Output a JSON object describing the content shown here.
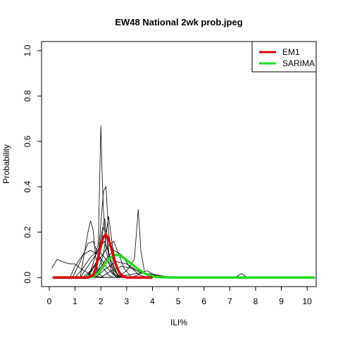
{
  "chart_data": {
    "type": "line",
    "title": "EW48 National 2wk prob.jpeg",
    "xlabel": "ILI%",
    "ylabel": "Probability",
    "xlim": [
      -0.3,
      10.35
    ],
    "ylim": [
      -0.04,
      1.04
    ],
    "x_ticks": [
      0,
      1,
      2,
      3,
      4,
      5,
      6,
      7,
      8,
      9,
      10
    ],
    "y_ticks": [
      0.0,
      0.2,
      0.4,
      0.6,
      0.8,
      1.0
    ],
    "x_tick_labels": [
      "0",
      "1",
      "2",
      "3",
      "4",
      "5",
      "6",
      "7",
      "8",
      "9",
      "10"
    ],
    "y_tick_labels": [
      "0.0",
      "0.2",
      "0.4",
      "0.6",
      "0.8",
      "1.0"
    ],
    "grid": false,
    "legend_position": "top-right",
    "legend": [
      {
        "name": "EM1",
        "color": "#dd0000"
      },
      {
        "name": "SARIMA",
        "color": "#22dd22"
      }
    ],
    "background_series": [
      {
        "color": "#000000",
        "points": [
          [
            0.1,
            0.04
          ],
          [
            0.3,
            0.08
          ],
          [
            0.5,
            0.07
          ],
          [
            0.8,
            0.06
          ],
          [
            1.0,
            0.06
          ],
          [
            1.2,
            0.04
          ],
          [
            1.5,
            0.02
          ],
          [
            1.8,
            0.005
          ],
          [
            2.2,
            0.0
          ],
          [
            10.3,
            0.0
          ]
        ]
      },
      {
        "color": "#000000",
        "points": [
          [
            0.1,
            0.0
          ],
          [
            1.2,
            0.0
          ],
          [
            1.5,
            0.2
          ],
          [
            1.6,
            0.25
          ],
          [
            1.7,
            0.21
          ],
          [
            1.8,
            0.09
          ],
          [
            1.9,
            0.02
          ],
          [
            2.1,
            0.0
          ],
          [
            10.3,
            0.0
          ]
        ]
      },
      {
        "color": "#000000",
        "points": [
          [
            0.1,
            0.0
          ],
          [
            1.5,
            0.0
          ],
          [
            1.7,
            0.06
          ],
          [
            1.9,
            0.15
          ],
          [
            2.0,
            0.67
          ],
          [
            2.05,
            0.45
          ],
          [
            2.1,
            0.3
          ],
          [
            2.2,
            0.12
          ],
          [
            2.4,
            0.03
          ],
          [
            2.6,
            0.0
          ],
          [
            10.3,
            0.0
          ]
        ]
      },
      {
        "color": "#000000",
        "points": [
          [
            0.1,
            0.0
          ],
          [
            1.7,
            0.0
          ],
          [
            1.9,
            0.1
          ],
          [
            2.1,
            0.38
          ],
          [
            2.2,
            0.4
          ],
          [
            2.3,
            0.2
          ],
          [
            2.5,
            0.05
          ],
          [
            2.7,
            0.0
          ],
          [
            10.3,
            0.0
          ]
        ]
      },
      {
        "color": "#000000",
        "points": [
          [
            0.1,
            0.0
          ],
          [
            1.8,
            0.0
          ],
          [
            2.0,
            0.18
          ],
          [
            2.15,
            0.26
          ],
          [
            2.3,
            0.1
          ],
          [
            2.5,
            0.02
          ],
          [
            2.7,
            0.0
          ],
          [
            10.3,
            0.0
          ]
        ]
      },
      {
        "color": "#000000",
        "points": [
          [
            0.1,
            0.0
          ],
          [
            1.8,
            0.0
          ],
          [
            2.1,
            0.1
          ],
          [
            2.3,
            0.27
          ],
          [
            2.45,
            0.14
          ],
          [
            2.6,
            0.05
          ],
          [
            2.8,
            0.0
          ],
          [
            10.3,
            0.0
          ]
        ]
      },
      {
        "color": "#000000",
        "points": [
          [
            0.1,
            0.0
          ],
          [
            2.6,
            0.0
          ],
          [
            3.0,
            0.03
          ],
          [
            3.3,
            0.08
          ],
          [
            3.45,
            0.3
          ],
          [
            3.55,
            0.12
          ],
          [
            3.7,
            0.02
          ],
          [
            3.9,
            0.0
          ],
          [
            10.3,
            0.0
          ]
        ]
      },
      {
        "color": "#000000",
        "points": [
          [
            0.1,
            0.0
          ],
          [
            0.8,
            0.0
          ],
          [
            1.0,
            0.05
          ],
          [
            1.3,
            0.1
          ],
          [
            1.6,
            0.12
          ],
          [
            1.9,
            0.1
          ],
          [
            2.2,
            0.05
          ],
          [
            2.5,
            0.01
          ],
          [
            2.8,
            0.0
          ],
          [
            10.3,
            0.0
          ]
        ]
      },
      {
        "color": "#000000",
        "points": [
          [
            0.1,
            0.0
          ],
          [
            0.9,
            0.0
          ],
          [
            1.2,
            0.07
          ],
          [
            1.5,
            0.15
          ],
          [
            1.7,
            0.16
          ],
          [
            1.9,
            0.1
          ],
          [
            2.1,
            0.04
          ],
          [
            2.3,
            0.01
          ],
          [
            2.5,
            0.0
          ],
          [
            10.3,
            0.0
          ]
        ]
      },
      {
        "color": "#000000",
        "points": [
          [
            0.1,
            0.0
          ],
          [
            1.0,
            0.0
          ],
          [
            1.3,
            0.04
          ],
          [
            1.6,
            0.09
          ],
          [
            1.9,
            0.12
          ],
          [
            2.2,
            0.08
          ],
          [
            2.5,
            0.03
          ],
          [
            2.8,
            0.0
          ],
          [
            10.3,
            0.0
          ]
        ]
      },
      {
        "color": "#000000",
        "points": [
          [
            0.1,
            0.0
          ],
          [
            1.2,
            0.0
          ],
          [
            1.5,
            0.05
          ],
          [
            1.8,
            0.1
          ],
          [
            2.0,
            0.15
          ],
          [
            2.2,
            0.19
          ],
          [
            2.4,
            0.12
          ],
          [
            2.6,
            0.04
          ],
          [
            2.9,
            0.0
          ],
          [
            10.3,
            0.0
          ]
        ]
      },
      {
        "color": "#000000",
        "points": [
          [
            0.1,
            0.0
          ],
          [
            1.4,
            0.0
          ],
          [
            1.7,
            0.04
          ],
          [
            2.0,
            0.09
          ],
          [
            2.3,
            0.14
          ],
          [
            2.5,
            0.16
          ],
          [
            2.7,
            0.1
          ],
          [
            2.9,
            0.04
          ],
          [
            3.2,
            0.0
          ],
          [
            10.3,
            0.0
          ]
        ]
      },
      {
        "color": "#000000",
        "points": [
          [
            0.1,
            0.0
          ],
          [
            1.6,
            0.0
          ],
          [
            1.9,
            0.03
          ],
          [
            2.2,
            0.08
          ],
          [
            2.5,
            0.12
          ],
          [
            2.8,
            0.1
          ],
          [
            3.1,
            0.05
          ],
          [
            3.5,
            0.01
          ],
          [
            3.9,
            0.0
          ],
          [
            10.3,
            0.0
          ]
        ]
      },
      {
        "color": "#000000",
        "points": [
          [
            0.1,
            0.0
          ],
          [
            1.8,
            0.0
          ],
          [
            2.2,
            0.04
          ],
          [
            2.6,
            0.07
          ],
          [
            3.0,
            0.06
          ],
          [
            3.4,
            0.03
          ],
          [
            3.8,
            0.01
          ],
          [
            4.2,
            0.0
          ],
          [
            10.3,
            0.0
          ]
        ]
      },
      {
        "color": "#000000",
        "points": [
          [
            0.1,
            0.0
          ],
          [
            1.3,
            0.0
          ],
          [
            1.6,
            0.03
          ],
          [
            1.9,
            0.08
          ],
          [
            2.1,
            0.22
          ],
          [
            2.2,
            0.2
          ],
          [
            2.35,
            0.08
          ],
          [
            2.5,
            0.02
          ],
          [
            2.7,
            0.0
          ],
          [
            10.3,
            0.0
          ]
        ]
      },
      {
        "color": "#000000",
        "points": [
          [
            0.1,
            0.0
          ],
          [
            2.0,
            0.0
          ],
          [
            2.4,
            0.03
          ],
          [
            2.8,
            0.05
          ],
          [
            3.2,
            0.04
          ],
          [
            3.6,
            0.02
          ],
          [
            4.0,
            0.01
          ],
          [
            4.4,
            0.005
          ],
          [
            4.8,
            0.0
          ],
          [
            10.3,
            0.0
          ]
        ]
      },
      {
        "color": "#000000",
        "points": [
          [
            0.1,
            0.0
          ],
          [
            2.5,
            0.0
          ],
          [
            3.0,
            0.01
          ],
          [
            3.5,
            0.02
          ],
          [
            4.0,
            0.015
          ],
          [
            4.5,
            0.005
          ],
          [
            5.0,
            0.0
          ],
          [
            10.3,
            0.0
          ]
        ]
      },
      {
        "color": "#000000",
        "points": [
          [
            0.1,
            0.0
          ],
          [
            3.2,
            0.0
          ],
          [
            3.5,
            0.015
          ],
          [
            3.8,
            0.03
          ],
          [
            4.1,
            0.01
          ],
          [
            4.4,
            0.0
          ],
          [
            10.3,
            0.0
          ]
        ]
      },
      {
        "color": "#000000",
        "points": [
          [
            0.1,
            0.0
          ],
          [
            5.5,
            0.0
          ],
          [
            5.7,
            0.003
          ],
          [
            5.9,
            0.0
          ],
          [
            7.2,
            0.0
          ],
          [
            7.45,
            0.017
          ],
          [
            7.7,
            0.0
          ],
          [
            10.3,
            0.0
          ]
        ]
      },
      {
        "color": "#000000",
        "points": [
          [
            0.1,
            0.0
          ],
          [
            1.5,
            0.0
          ],
          [
            1.8,
            0.06
          ],
          [
            2.0,
            0.14
          ],
          [
            2.15,
            0.16
          ],
          [
            2.3,
            0.11
          ],
          [
            2.5,
            0.04
          ],
          [
            2.7,
            0.0
          ],
          [
            10.3,
            0.0
          ]
        ]
      }
    ],
    "series": [
      {
        "name": "SARIMA",
        "color": "#22dd22",
        "x": [
          0.15,
          1.0,
          1.5,
          1.7,
          1.9,
          2.1,
          2.3,
          2.5,
          2.7,
          2.9,
          3.1,
          3.3,
          3.5,
          3.7,
          3.9,
          4.1,
          4.4,
          4.8,
          5.5,
          10.3
        ],
        "values": [
          0.0,
          0.0,
          0.0,
          0.005,
          0.02,
          0.05,
          0.08,
          0.1,
          0.098,
          0.085,
          0.068,
          0.05,
          0.032,
          0.018,
          0.008,
          0.003,
          0.001,
          0.0,
          0.0,
          0.0
        ]
      },
      {
        "name": "EM1",
        "color": "#dd0000",
        "x": [
          0.15,
          1.5,
          1.7,
          1.8,
          1.9,
          2.0,
          2.1,
          2.2,
          2.3,
          2.4,
          2.5,
          2.6,
          2.7,
          2.8,
          2.9,
          3.0,
          3.2,
          4.0
        ],
        "values": [
          0.0,
          0.0,
          0.01,
          0.04,
          0.09,
          0.14,
          0.18,
          0.19,
          0.17,
          0.13,
          0.09,
          0.05,
          0.025,
          0.01,
          0.004,
          0.0,
          0.0,
          0.0
        ]
      }
    ]
  }
}
